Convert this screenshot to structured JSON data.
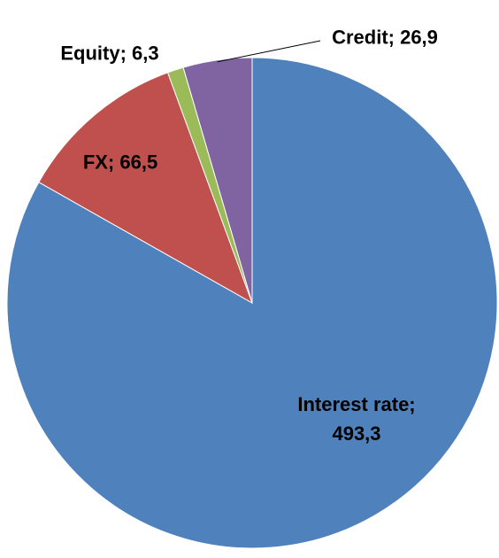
{
  "chart_data": {
    "type": "pie",
    "values": [
      493.3,
      66.5,
      6.3,
      26.9
    ],
    "value_labels": [
      "Interest rate; 493,3",
      "FX; 66,5",
      "Equity; 6,3",
      "Credit; 26,9"
    ],
    "colors": [
      "#4f81bd",
      "#c0504d",
      "#9bbb59",
      "#8064a2"
    ],
    "start_angle": 0,
    "direction": "clockwise"
  }
}
